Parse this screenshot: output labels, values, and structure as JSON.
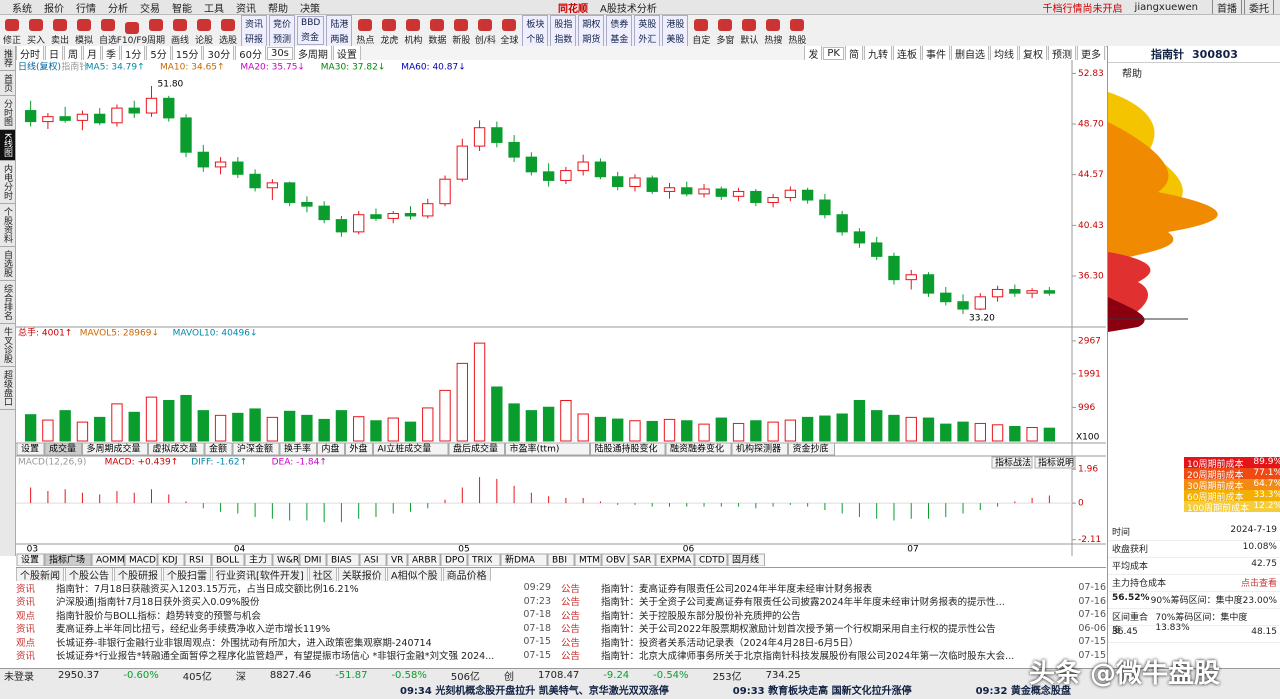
{
  "app": {
    "logo": "同花顺",
    "subtitle": "A股技术分析",
    "notice": "千档行情尚未开启",
    "user": "jiangxuewen",
    "menu": [
      "系统",
      "报价",
      "行情",
      "分析",
      "交易",
      "智能",
      "工具",
      "资讯",
      "帮助",
      "决策"
    ],
    "window_buttons": [
      "首播",
      "委托"
    ]
  },
  "toolbar": [
    "修正",
    "买入",
    "卖出",
    "模拟",
    "自选",
    "F10/F9",
    "周期",
    "画线",
    "论股",
    "选股"
  ],
  "toolbar_pairs": [
    [
      "资讯",
      "研报"
    ],
    [
      "竞价",
      "预测"
    ],
    [
      "BBD",
      "资金"
    ],
    [
      "陆港",
      "两融"
    ]
  ],
  "toolbar_icons": [
    "热点",
    "龙虎",
    "机构",
    "数据",
    "新股",
    "创/科",
    "全球"
  ],
  "toolbar_pairs2": [
    [
      "板块",
      "个股"
    ],
    [
      "股指",
      "指数"
    ],
    [
      "期权",
      "期货"
    ],
    [
      "债券",
      "基金"
    ],
    [
      "英股",
      "外汇"
    ],
    [
      "港股",
      "美股"
    ]
  ],
  "toolbar_tail": [
    "自定",
    "多窗",
    "默认",
    "热搜",
    "热股"
  ],
  "periods": [
    "分时",
    "日",
    "周",
    "月",
    "季",
    "1分",
    "5分",
    "15分",
    "30分",
    "60分",
    "30s",
    "多周期",
    "设置"
  ],
  "right_tools": [
    "发",
    "PK",
    "简",
    "九转",
    "连板",
    "事件",
    "删自选",
    "均线",
    "复权",
    "预测",
    "更多"
  ],
  "sidebar": [
    "推荐",
    "首页",
    "分时图",
    "K线图",
    "内电分时",
    "个股资料",
    "自选股",
    "综合排名",
    "牛叉诊股",
    "超级盘口"
  ],
  "stock": {
    "name": "指南针",
    "code": "300803"
  },
  "chart_data": {
    "type": "candlestick",
    "legend": [
      "日线(复权)",
      "指南针",
      "MA5: 34.79↑",
      "MA10: 34.65↑",
      "MA20: 35.75↓",
      "MA30: 37.82↓",
      "MA60: 40.87↓"
    ],
    "high_label": "51.80",
    "low_label": "33.20",
    "categories": [
      "03",
      null,
      null,
      null,
      null,
      null,
      null,
      null,
      null,
      null,
      null,
      null,
      "04",
      null,
      null,
      null,
      null,
      null,
      null,
      null,
      null,
      null,
      null,
      null,
      null,
      "05",
      null,
      null,
      null,
      null,
      null,
      null,
      null,
      null,
      null,
      null,
      null,
      null,
      "06",
      null,
      null,
      null,
      null,
      null,
      null,
      null,
      null,
      null,
      null,
      null,
      null,
      "07",
      null,
      null,
      null,
      null,
      null,
      null,
      null,
      null
    ],
    "open": [
      49.8,
      48.9,
      49.3,
      49.0,
      49.5,
      48.8,
      50.0,
      49.6,
      50.8,
      49.2,
      46.4,
      45.2,
      45.6,
      44.6,
      43.5,
      43.9,
      42.3,
      42.0,
      40.9,
      39.9,
      41.3,
      41.0,
      41.4,
      41.2,
      42.2,
      44.2,
      46.9,
      48.4,
      47.2,
      46.0,
      44.8,
      44.1,
      44.9,
      45.6,
      44.4,
      43.6,
      44.3,
      43.2,
      43.5,
      43.0,
      43.4,
      42.8,
      43.2,
      42.3,
      42.7,
      43.3,
      42.5,
      41.3,
      39.9,
      39.0,
      37.9,
      36.0,
      36.4,
      34.9,
      34.2,
      33.6,
      34.6,
      35.2,
      34.9,
      35.1
    ],
    "high": [
      50.6,
      49.6,
      50.1,
      49.8,
      50.0,
      50.3,
      50.6,
      51.8,
      51.0,
      49.5,
      47.0,
      46.0,
      46.0,
      45.0,
      44.2,
      44.0,
      42.8,
      42.4,
      41.2,
      41.6,
      41.8,
      41.6,
      42.0,
      42.6,
      44.5,
      47.5,
      49.0,
      48.9,
      47.8,
      46.4,
      45.5,
      45.2,
      46.2,
      45.9,
      44.8,
      44.6,
      44.5,
      43.9,
      44.0,
      43.8,
      43.6,
      43.5,
      43.4,
      43.0,
      43.6,
      43.5,
      43.0,
      41.6,
      40.2,
      39.5,
      38.2,
      36.8,
      36.6,
      35.4,
      34.8,
      34.9,
      35.5,
      35.6,
      35.3,
      35.4
    ],
    "low": [
      48.5,
      48.3,
      48.8,
      48.2,
      48.6,
      48.5,
      49.2,
      49.3,
      48.9,
      46.0,
      44.8,
      44.6,
      44.3,
      43.2,
      42.5,
      42.0,
      41.5,
      40.6,
      39.5,
      39.7,
      40.8,
      40.6,
      40.9,
      41.0,
      42.0,
      44.0,
      46.5,
      46.8,
      45.6,
      44.5,
      43.6,
      43.8,
      44.5,
      44.2,
      43.3,
      43.2,
      43.0,
      42.6,
      42.8,
      42.7,
      42.5,
      42.4,
      42.0,
      41.9,
      42.4,
      42.2,
      41.0,
      39.6,
      38.6,
      37.6,
      35.6,
      35.2,
      34.6,
      33.9,
      33.2,
      33.5,
      34.2,
      34.6,
      34.5,
      34.7
    ],
    "close": [
      48.9,
      49.3,
      49.0,
      49.5,
      48.8,
      50.0,
      49.6,
      50.8,
      49.2,
      46.4,
      45.2,
      45.6,
      44.6,
      43.5,
      43.9,
      42.3,
      42.0,
      40.9,
      39.9,
      41.3,
      41.0,
      41.4,
      41.2,
      42.2,
      44.2,
      46.9,
      48.4,
      47.2,
      46.0,
      44.8,
      44.1,
      44.9,
      45.6,
      44.4,
      43.6,
      44.3,
      43.2,
      43.5,
      43.0,
      43.4,
      42.8,
      43.2,
      42.3,
      42.7,
      43.3,
      42.5,
      41.3,
      39.9,
      39.0,
      37.9,
      36.0,
      36.4,
      34.9,
      34.2,
      33.6,
      34.6,
      35.2,
      34.9,
      35.1,
      34.9
    ],
    "up_color": "#e8141b",
    "down_color": "#0a9d2e",
    "ylim": [
      32.3,
      53.6
    ],
    "yticks": [
      {
        "value": 52.83,
        "label": "52.83"
      },
      {
        "value": 48.7,
        "label": "48.70"
      },
      {
        "value": 44.57,
        "label": "44.57"
      },
      {
        "value": 40.43,
        "label": "40.43"
      },
      {
        "value": 36.3,
        "label": "36.30"
      }
    ],
    "volume": {
      "legend": [
        "总手: 4001↑",
        "MAVOL5: 28969↓",
        "MAVOL10: 40496↓"
      ],
      "unit": "X100",
      "values": [
        780,
        620,
        900,
        560,
        700,
        1100,
        850,
        1300,
        1200,
        1350,
        900,
        760,
        820,
        950,
        700,
        880,
        760,
        640,
        900,
        720,
        600,
        680,
        560,
        980,
        1500,
        2300,
        2900,
        1600,
        1100,
        900,
        1000,
        1200,
        800,
        700,
        650,
        600,
        580,
        640,
        600,
        500,
        680,
        520,
        600,
        560,
        620,
        700,
        740,
        800,
        1200,
        900,
        760,
        700,
        680,
        500,
        560,
        520,
        480,
        430,
        400,
        380
      ],
      "ylim": [
        0,
        3200
      ],
      "yticks": [
        2967,
        1991,
        996
      ]
    },
    "indicator_tabs": [
      "设置",
      "成交量",
      "多周期成交量",
      "虚拟成交量",
      "金额",
      "沪深金额",
      "换手率",
      "内盘",
      "外盘",
      "AI立桩成交量",
      "盘后成交量",
      "市盈率(ttm)",
      "陆股通持股变化",
      "融资融券变化",
      "机构探测器",
      "资金抄底"
    ],
    "macd": {
      "legend": [
        "MACD(12,26,9)",
        "MACD: +0.439↑",
        "DIFF: -1.62↑",
        "DEA: -1.84↑"
      ],
      "buttons": [
        "指标战法",
        "指标说明"
      ],
      "values": [
        0.9,
        0.7,
        0.8,
        0.6,
        0.5,
        0.7,
        0.6,
        0.8,
        0.5,
        0.1,
        -0.3,
        -0.5,
        -0.6,
        -0.8,
        -0.9,
        -1.0,
        -1.0,
        -1.1,
        -1.1,
        -0.9,
        -0.8,
        -0.6,
        -0.5,
        -0.3,
        0.2,
        0.9,
        1.5,
        1.4,
        1.0,
        0.6,
        0.4,
        0.3,
        0.3,
        0.1,
        -0.1,
        -0.1,
        -0.2,
        -0.2,
        -0.2,
        -0.2,
        -0.2,
        -0.2,
        -0.3,
        -0.2,
        -0.1,
        -0.2,
        -0.4,
        -0.6,
        -0.8,
        -0.9,
        -1.0,
        -0.9,
        -0.9,
        -0.8,
        -0.6,
        -0.4,
        -0.2,
        0.1,
        0.3,
        0.44
      ],
      "ylim": [
        -2.3,
        2.2
      ],
      "yticks": [
        1.96,
        0,
        -2.11
      ]
    },
    "bottom_tabs": [
      "设置",
      "指标广场",
      "AOMM",
      "MACD",
      "KDJ",
      "RSI",
      "BOLL",
      "主力",
      "W&R",
      "DMI",
      "BIAS",
      "ASI",
      "VR",
      "ARBR",
      "DPO",
      "TRIX",
      "新DMA",
      "BBI",
      "MTM",
      "OBV",
      "SAR",
      "EXPMA",
      "CDTD",
      "固月线"
    ]
  },
  "right_panel": {
    "help": "帮助",
    "cost_rows": [
      [
        "10周期前成本",
        "89.9%"
      ],
      [
        "20周期前成本",
        "77.1%"
      ],
      [
        "30周期前成本",
        "64.7%"
      ],
      [
        "60周期前成本",
        "33.3%"
      ],
      [
        "100周期前成本",
        "12.2%"
      ]
    ],
    "stats": [
      [
        "时间",
        "2024-7-19"
      ],
      [
        "收盘获利",
        "10.08%"
      ],
      [
        "平均成本",
        "42.75"
      ],
      [
        "主力持仓成本",
        "点击查看"
      ]
    ],
    "ratio": "56.52%",
    "range90": "90%筹码区间：集中度23.00%",
    "overlap": "区间重合度",
    "range70": "70%筹码区间：集中度13.83%",
    "range_ends": [
      "36.45",
      "48.15"
    ]
  },
  "news": {
    "tabs": [
      "个股新闻",
      "个股公告",
      "个股研报",
      "个股扫雷",
      "行业资讯[软件开发]",
      "社区",
      "关联报价",
      "A相似个股",
      "商品价格"
    ],
    "left": [
      [
        "资讯",
        "指南针：7月18日获融资买入1203.15万元，占当日成交额比例16.21%",
        "09:29"
      ],
      [
        "资讯",
        "沪深股通|指南针7月18日获外资买入0.09%股份",
        "07:23"
      ],
      [
        "观点",
        "指南针股价与BOLL指标：趋势转变的预警与机会",
        "07-18"
      ],
      [
        "资讯",
        "麦高证券上半年同比扭亏，经纪业务手续费净收入逆市增长119%",
        "07-18"
      ],
      [
        "观点",
        "长城证券-非银行金融行业非银周观点：外围扰动有所加大，进入政策密集观察期-240714",
        "07-15"
      ],
      [
        "资讯",
        "长城证券*行业报告*转融通全面暂停之程序化监管趋严，有望提振市场信心 *非银行金融*刘文强 2024...",
        "07-15"
      ]
    ],
    "right": [
      [
        "公告",
        "指南针：麦高证券有限责任公司2024年半年度未经审计财务报表",
        "07-16"
      ],
      [
        "公告",
        "指南针：关于全资子公司麦高证券有限责任公司披露2024年半年度未经审计财务报表的提示性...",
        "07-16"
      ],
      [
        "公告",
        "指南针：关于控股股东部分股份补充质押的公告",
        "07-16"
      ],
      [
        "公告",
        "指南针：关于公司2022年股票期权激励计划首次授予第一个行权期采用自主行权的提示性公告",
        "06-06"
      ],
      [
        "公告",
        "指南针：投资者关系活动记录表（2024年4月28日-6月5日）",
        "07-15"
      ],
      [
        "公告",
        "指南针：北京大成律师事务所关于北京指南针科技发展股份有限公司2024年第一次临时股东大会...",
        "07-15"
      ]
    ]
  },
  "status": {
    "login": "未登录",
    "indices": [
      "2950.37",
      "-0.60%",
      "405亿",
      "深",
      "8827.46",
      "-51.87",
      "-0.58%",
      "506亿",
      "创",
      "1708.47",
      "-9.24",
      "-0.54%",
      "253亿",
      "734.25"
    ],
    "ticker": [
      "09:34 光刻机概念股开盘拉升 凯美特气、京华激光双双涨停",
      "09:33 教育板块走高 国新文化拉升涨停",
      "09:32 黄金概念股盘"
    ],
    "watermark": "头条 @微牛盘股"
  }
}
